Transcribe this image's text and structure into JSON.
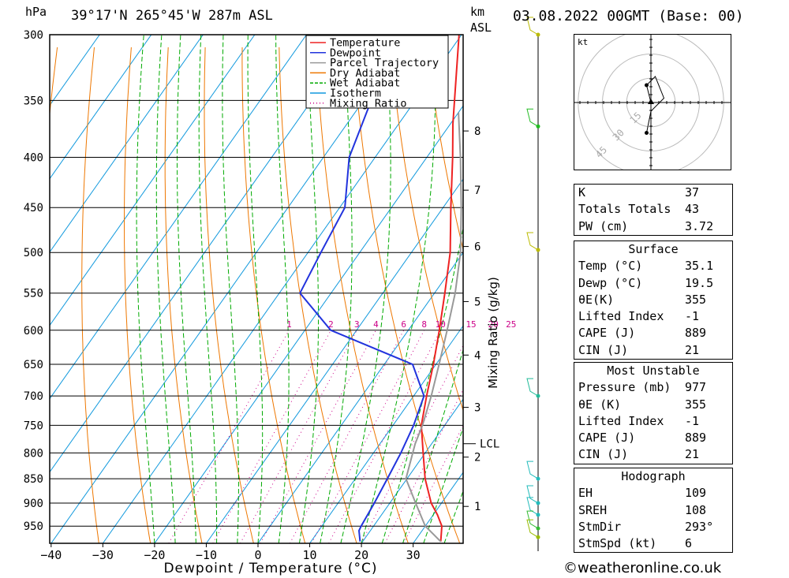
{
  "header": {
    "pressure_unit": "hPa",
    "location": "39°17'N  265°45'W  287m  ASL",
    "height_unit_top": "km",
    "height_unit_bottom": "ASL",
    "datetime": "03.08.2022  00GMT  (Base: 00)"
  },
  "chart_data": {
    "type": "line",
    "xlabel": "Dewpoint / Temperature (°C)",
    "mixing_ratio_label": "Mixing Ratio (g/kg)",
    "x_ticks": [
      -40,
      -30,
      -20,
      -10,
      0,
      10,
      20,
      30
    ],
    "pressure_levels": [
      300,
      350,
      400,
      450,
      500,
      550,
      600,
      650,
      700,
      750,
      800,
      850,
      900,
      950
    ],
    "height_ticks_km": [
      {
        "label": "8",
        "p": 376
      },
      {
        "label": "7",
        "p": 432
      },
      {
        "label": "6",
        "p": 493
      },
      {
        "label": "5",
        "p": 561
      },
      {
        "label": "4",
        "p": 636
      },
      {
        "label": "3",
        "p": 719
      },
      {
        "label": "2",
        "p": 808
      },
      {
        "label": "1",
        "p": 907
      }
    ],
    "lcl": {
      "label": "LCL",
      "p": 783
    },
    "mixing_ratio_values": [
      "1",
      "2",
      "3",
      "4",
      "6",
      "8",
      "10",
      "15",
      "20",
      "25"
    ],
    "legend": [
      {
        "name": "Temperature",
        "color": "#ee2222",
        "dash": "solid"
      },
      {
        "name": "Dewpoint",
        "color": "#2233dd",
        "dash": "solid"
      },
      {
        "name": "Parcel Trajectory",
        "color": "#999999",
        "dash": "solid"
      },
      {
        "name": "Dry Adiabat",
        "color": "#ee7700",
        "dash": "solid"
      },
      {
        "name": "Wet Adiabat",
        "color": "#00aa00",
        "dash": "dashed"
      },
      {
        "name": "Isotherm",
        "color": "#1199dd",
        "dash": "solid"
      },
      {
        "name": "Mixing Ratio",
        "color": "#cc0088",
        "dash": "dotted"
      }
    ],
    "series": [
      {
        "name": "Temperature",
        "points": [
          [
            985,
            35.1
          ],
          [
            950,
            33.2
          ],
          [
            925,
            30.8
          ],
          [
            900,
            28.0
          ],
          [
            850,
            23.5
          ],
          [
            800,
            19.6
          ],
          [
            750,
            15.5
          ],
          [
            700,
            12.5
          ],
          [
            650,
            9.5
          ],
          [
            600,
            6.0
          ],
          [
            550,
            2.0
          ],
          [
            500,
            -2.5
          ],
          [
            450,
            -8.5
          ],
          [
            400,
            -15.0
          ],
          [
            370,
            -19.5
          ],
          [
            300,
            -30.5
          ]
        ]
      },
      {
        "name": "Dewpoint",
        "points": [
          [
            985,
            19.5
          ],
          [
            960,
            17.8
          ],
          [
            950,
            17.6
          ],
          [
            900,
            17.0
          ],
          [
            850,
            16.2
          ],
          [
            800,
            15.3
          ],
          [
            750,
            14.0
          ],
          [
            700,
            12.0
          ],
          [
            650,
            5.5
          ],
          [
            600,
            -15.0
          ],
          [
            550,
            -26.0
          ],
          [
            500,
            -27.5
          ],
          [
            450,
            -29.0
          ],
          [
            400,
            -35.0
          ],
          [
            350,
            -38.5
          ],
          [
            300,
            -46.0
          ]
        ]
      },
      {
        "name": "Parcel Trajectory",
        "points": [
          [
            985,
            35.1
          ],
          [
            950,
            30.0
          ],
          [
            900,
            25.0
          ],
          [
            850,
            19.8
          ],
          [
            783,
            16.8
          ],
          [
            750,
            15.7
          ],
          [
            700,
            13.4
          ],
          [
            650,
            10.6
          ],
          [
            600,
            7.5
          ],
          [
            550,
            4.0
          ],
          [
            500,
            -0.5
          ],
          [
            450,
            -6.5
          ],
          [
            400,
            -13.5
          ],
          [
            360,
            -20.0
          ]
        ]
      }
    ],
    "winds_km": [
      {
        "p": 300,
        "color": "#bbbb00"
      },
      {
        "p": 372,
        "color": "#22bb22"
      },
      {
        "p": 497,
        "color": "#bbbb00"
      },
      {
        "p": 700,
        "color": "#22bb99"
      },
      {
        "p": 850,
        "color": "#22bbbb"
      },
      {
        "p": 900,
        "color": "#22bbbb"
      },
      {
        "p": 925,
        "color": "#22bbbb"
      },
      {
        "p": 955,
        "color": "#33bb33"
      },
      {
        "p": 975,
        "color": "#99bb00"
      }
    ]
  },
  "hodograph": {
    "unit": "kt",
    "ring_labels": [
      "15",
      "30",
      "45"
    ],
    "trace": [
      [
        0,
        0
      ],
      [
        -1,
        4
      ],
      [
        1,
        6
      ],
      [
        3,
        1
      ],
      [
        0,
        -2
      ],
      [
        -1,
        -7
      ]
    ]
  },
  "indices": [
    {
      "label": "K",
      "value": "37"
    },
    {
      "label": "Totals Totals",
      "value": "43"
    },
    {
      "label": "PW (cm)",
      "value": "3.72"
    }
  ],
  "surface": {
    "title": "Surface",
    "rows": [
      {
        "label": "Temp (°C)",
        "value": "35.1"
      },
      {
        "label": "Dewp (°C)",
        "value": "19.5"
      },
      {
        "label": "θE(K)",
        "value": "355"
      },
      {
        "label": "Lifted Index",
        "value": "-1"
      },
      {
        "label": "CAPE (J)",
        "value": "889"
      },
      {
        "label": "CIN (J)",
        "value": "21"
      }
    ]
  },
  "most_unstable": {
    "title": "Most Unstable",
    "rows": [
      {
        "label": "Pressure (mb)",
        "value": "977"
      },
      {
        "label": "θE (K)",
        "value": "355"
      },
      {
        "label": "Lifted Index",
        "value": "-1"
      },
      {
        "label": "CAPE (J)",
        "value": "889"
      },
      {
        "label": "CIN (J)",
        "value": "21"
      }
    ]
  },
  "hodograph_table": {
    "title": "Hodograph",
    "rows": [
      {
        "label": "EH",
        "value": "109"
      },
      {
        "label": "SREH",
        "value": "108"
      },
      {
        "label": "StmDir",
        "value": "293°"
      },
      {
        "label": "StmSpd (kt)",
        "value": "6"
      }
    ]
  },
  "footer": "©weatheronline.co.uk"
}
